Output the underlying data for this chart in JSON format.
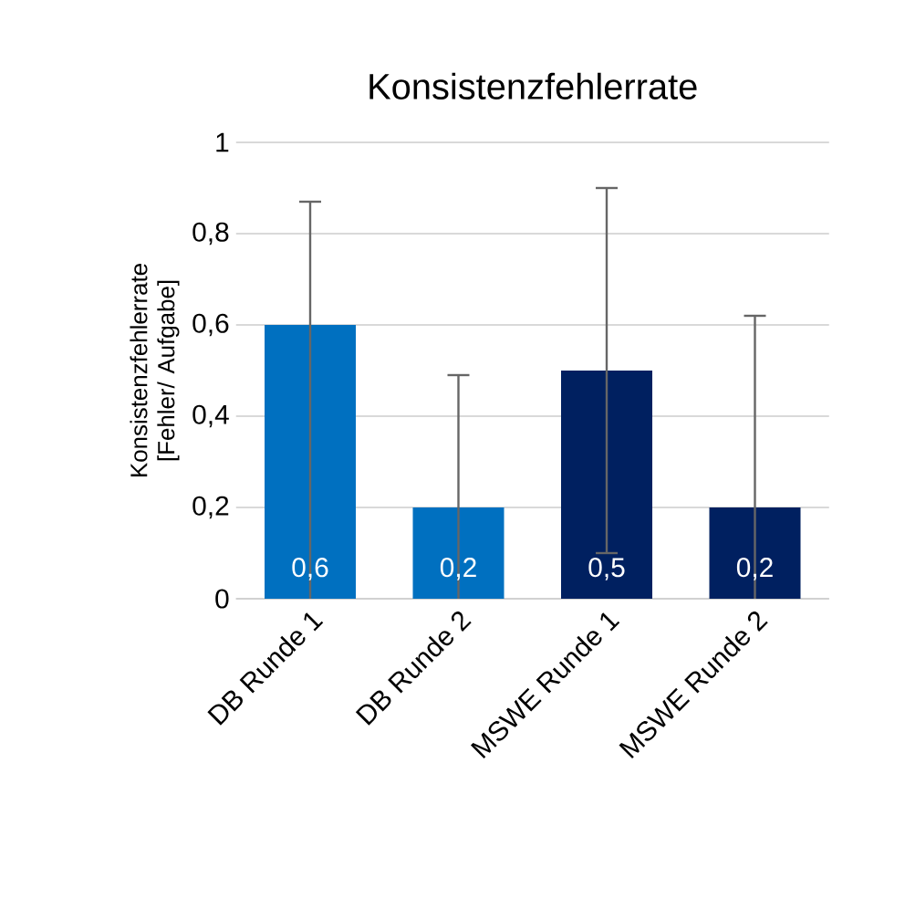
{
  "chart_data": {
    "type": "bar",
    "title": "Konsistenzfehlerrate",
    "ylabel": "Konsistenzfehlerrate [Fehler/ Aufgabe]",
    "categories": [
      "DB Runde 1",
      "DB Runde 2",
      "MSWE Runde 1",
      "MSWE Runde 2"
    ],
    "values": [
      0.6,
      0.2,
      0.5,
      0.2
    ],
    "colors": [
      "#0070c0",
      "#0070c0",
      "#002060",
      "#002060"
    ],
    "errors": [
      [
        0,
        0.87
      ],
      [
        0,
        0.49
      ],
      [
        0.1,
        0.9
      ],
      [
        0,
        0.62
      ]
    ],
    "value_labels": [
      "0,6",
      "0,2",
      "0,5",
      "0,2"
    ],
    "ylim": [
      0,
      1
    ],
    "yticks": [
      0,
      {
        "value": 0.2,
        "label": "0,2"
      },
      {
        "value": 0.4,
        "label": "0,4"
      },
      {
        "value": 0.6,
        "label": "0,6"
      },
      {
        "value": 0.8,
        "label": "0,8"
      },
      1
    ],
    "grid": "y"
  }
}
